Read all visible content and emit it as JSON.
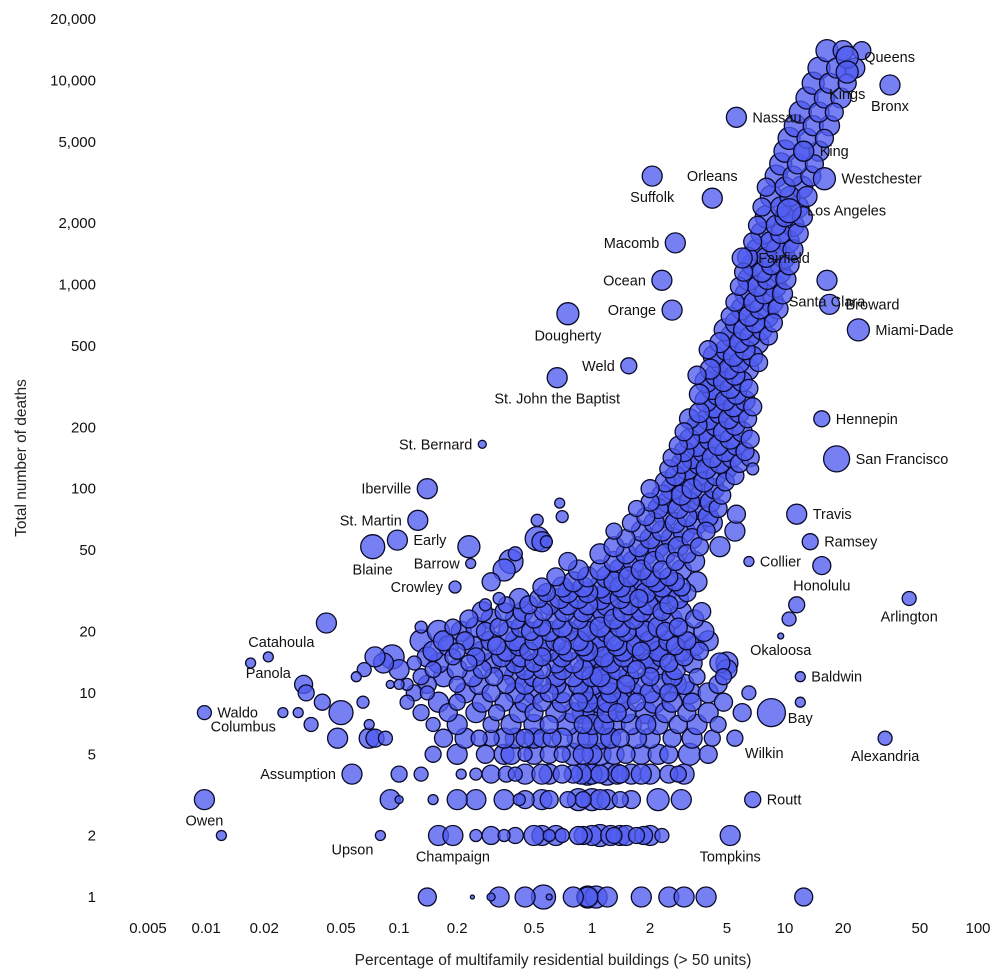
{
  "chart_data": {
    "type": "scatter",
    "title": "",
    "xlabel": "Percentage of multifamily residential buildings (> 50 units)",
    "ylabel": "Total number of deaths",
    "x_scale": "log",
    "y_scale": "log",
    "xlim": [
      0.0025,
      100
    ],
    "ylim": [
      0.85,
      20000
    ],
    "grid": false,
    "legend": "none",
    "x_ticks": [
      {
        "v": 0.005,
        "label": "0.005"
      },
      {
        "v": 0.01,
        "label": "0.01"
      },
      {
        "v": 0.02,
        "label": "0.02"
      },
      {
        "v": 0.05,
        "label": "0.05"
      },
      {
        "v": 0.1,
        "label": "0.1"
      },
      {
        "v": 0.2,
        "label": "0.2"
      },
      {
        "v": 0.5,
        "label": "0.5"
      },
      {
        "v": 1,
        "label": "1"
      },
      {
        "v": 2,
        "label": "2"
      },
      {
        "v": 5,
        "label": "5"
      },
      {
        "v": 10,
        "label": "10"
      },
      {
        "v": 20,
        "label": "20"
      },
      {
        "v": 50,
        "label": "50"
      },
      {
        "v": 100,
        "label": "100"
      }
    ],
    "y_ticks": [
      {
        "v": 1,
        "label": "1"
      },
      {
        "v": 2,
        "label": "2"
      },
      {
        "v": 5,
        "label": "5"
      },
      {
        "v": 10,
        "label": "10"
      },
      {
        "v": 20,
        "label": "20"
      },
      {
        "v": 50,
        "label": "50"
      },
      {
        "v": 100,
        "label": "100"
      },
      {
        "v": 200,
        "label": "200"
      },
      {
        "v": 500,
        "label": "500"
      },
      {
        "v": 1000,
        "label": "1,000"
      },
      {
        "v": 2000,
        "label": "2,000"
      },
      {
        "v": 5000,
        "label": "5,000"
      },
      {
        "v": 10000,
        "label": "10,000"
      },
      {
        "v": 20000,
        "label": "20,000"
      }
    ],
    "colors": {
      "bubble_fill": "#4f5cf0",
      "bubble_fill_opacity": 0.78,
      "bubble_stroke": "#0a0a2a"
    },
    "labeled_points": [
      {
        "name": "Queens",
        "x": 21,
        "y": 13000,
        "size": 11,
        "label_pos": "right"
      },
      {
        "name": "Kings",
        "x": 21,
        "y": 11000,
        "size": 11,
        "label_pos": "below"
      },
      {
        "name": "Bronx",
        "x": 35,
        "y": 9500,
        "size": 10,
        "label_pos": "below"
      },
      {
        "name": "Nassau",
        "x": 5.6,
        "y": 6600,
        "size": 10,
        "label_pos": "right"
      },
      {
        "name": "King",
        "x": 12.5,
        "y": 4500,
        "size": 10,
        "label_pos": "right"
      },
      {
        "name": "Westchester",
        "x": 16,
        "y": 3300,
        "size": 11,
        "label_pos": "right"
      },
      {
        "name": "Orleans",
        "x": 4.2,
        "y": 2650,
        "size": 10,
        "label_pos": "above"
      },
      {
        "name": "Suffolk",
        "x": 2.05,
        "y": 3400,
        "size": 10,
        "label_pos": "below"
      },
      {
        "name": "Los Angeles",
        "x": 10.5,
        "y": 2300,
        "size": 12,
        "label_pos": "right"
      },
      {
        "name": "Macomb",
        "x": 2.7,
        "y": 1600,
        "size": 10,
        "label_pos": "left"
      },
      {
        "name": "Fairfield",
        "x": 6,
        "y": 1350,
        "size": 10,
        "label_pos": "right"
      },
      {
        "name": "Ocean",
        "x": 2.3,
        "y": 1050,
        "size": 10,
        "label_pos": "left"
      },
      {
        "name": "Santa Clara",
        "x": 16.5,
        "y": 1050,
        "size": 10,
        "label_pos": "below"
      },
      {
        "name": "Orange",
        "x": 2.6,
        "y": 750,
        "size": 10,
        "label_pos": "left"
      },
      {
        "name": "Broward",
        "x": 17,
        "y": 800,
        "size": 10,
        "label_pos": "right"
      },
      {
        "name": "Miami-Dade",
        "x": 24,
        "y": 600,
        "size": 11,
        "label_pos": "right"
      },
      {
        "name": "Dougherty",
        "x": 0.75,
        "y": 720,
        "size": 11,
        "label_pos": "below"
      },
      {
        "name": "Weld",
        "x": 1.55,
        "y": 400,
        "size": 8,
        "label_pos": "left"
      },
      {
        "name": "St. John the Baptist",
        "x": 0.66,
        "y": 350,
        "size": 10,
        "label_pos": "below"
      },
      {
        "name": "Hennepin",
        "x": 15.5,
        "y": 220,
        "size": 8,
        "label_pos": "right"
      },
      {
        "name": "St. Bernard",
        "x": 0.27,
        "y": 165,
        "size": 4,
        "label_pos": "left"
      },
      {
        "name": "San Francisco",
        "x": 18.5,
        "y": 140,
        "size": 13,
        "label_pos": "right"
      },
      {
        "name": "Iberville",
        "x": 0.14,
        "y": 100,
        "size": 10,
        "label_pos": "left"
      },
      {
        "name": "Travis",
        "x": 11.5,
        "y": 75,
        "size": 10,
        "label_pos": "right"
      },
      {
        "name": "St. Martin",
        "x": 0.125,
        "y": 70,
        "size": 10,
        "label_pos": "left"
      },
      {
        "name": "Early",
        "x": 0.098,
        "y": 56,
        "size": 10,
        "label_pos": "right"
      },
      {
        "name": "Ramsey",
        "x": 13.5,
        "y": 55,
        "size": 8,
        "label_pos": "right"
      },
      {
        "name": "Blaine",
        "x": 0.073,
        "y": 52,
        "size": 12,
        "label_pos": "below"
      },
      {
        "name": "Barrow",
        "x": 0.235,
        "y": 43,
        "size": 5,
        "label_pos": "left"
      },
      {
        "name": "Collier",
        "x": 6.5,
        "y": 44,
        "size": 5,
        "label_pos": "right"
      },
      {
        "name": "Crowley",
        "x": 0.195,
        "y": 33,
        "size": 6,
        "label_pos": "left"
      },
      {
        "name": "Honolulu",
        "x": 15.5,
        "y": 42,
        "size": 9,
        "label_pos": "below"
      },
      {
        "name": "Arlington",
        "x": 44,
        "y": 29,
        "size": 7,
        "label_pos": "below"
      },
      {
        "name": "Catahoula",
        "x": 0.042,
        "y": 22,
        "size": 10,
        "label_pos": "below-left"
      },
      {
        "name": "Okaloosa",
        "x": 9.5,
        "y": 19,
        "size": 3,
        "label_pos": "below"
      },
      {
        "name": "Panola",
        "x": 0.021,
        "y": 15,
        "size": 5,
        "label_pos": "below"
      },
      {
        "name": "Baldwin",
        "x": 12,
        "y": 12,
        "size": 5,
        "label_pos": "right"
      },
      {
        "name": "Waldo",
        "x": 0.0098,
        "y": 8,
        "size": 7,
        "label_pos": "right"
      },
      {
        "name": "Bay",
        "x": 12,
        "y": 9,
        "size": 5,
        "label_pos": "below"
      },
      {
        "name": "Columbus",
        "x": 0.025,
        "y": 8,
        "size": 5,
        "label_pos": "below-left"
      },
      {
        "name": "Alexandria",
        "x": 33,
        "y": 6,
        "size": 7,
        "label_pos": "below"
      },
      {
        "name": "Wilkin",
        "x": 5.5,
        "y": 6,
        "size": 8,
        "label_pos": "below-right"
      },
      {
        "name": "Assumption",
        "x": 0.057,
        "y": 4,
        "size": 10,
        "label_pos": "left"
      },
      {
        "name": "Routt",
        "x": 6.8,
        "y": 3,
        "size": 8,
        "label_pos": "right"
      },
      {
        "name": "Owen",
        "x": 0.0098,
        "y": 3,
        "size": 10,
        "label_pos": "below"
      },
      {
        "name": "Upson",
        "x": 0.08,
        "y": 2,
        "size": 5,
        "label_pos": "below-left"
      },
      {
        "name": "Champaign",
        "x": 0.19,
        "y": 2,
        "size": 10,
        "label_pos": "below"
      },
      {
        "name": "Tompkins",
        "x": 5.2,
        "y": 2,
        "size": 10,
        "label_pos": "below"
      }
    ],
    "other_points_note": "approximately 1000 additional unlabeled counties",
    "points_compact": "0.95:1:11 1.05:1:11 1.2:1:10 0.56:1:12 0.33:1:10 0.14:1:9 0.24:1:2 0.45:1:10 2.5:1:10 3:1:10 12.5:1:9 0.3:1:4 0.6:1:3 1.8:1:10 0.95:1:10 0.8:1:10 3.9:1:10 0.4:2:8 0.55:2:10 0.7:2:7 1:2:10 1.1:2:11 1.4:2:10 1.7:2:8 2:2:10 2.3:2:7 0.25:2:6 0.3:2:9 0.6:2:6 0.9:2:9 0.012:2:5 0.16:2:10 1.5:2:10 1.3:2:8 0.65:2:10 0.85:2:9 1.85:2:9 0.35:2:6 0.5:2:10 1.25:2:10 0.9:3:8 1:3:11 1.2:3:10 0.55:3:10 0.35:3:10 0.09:3:10 0.6:3:9 1.4:3:8 2.2:3:11 2.9:3:10 0.42:3:6 0.75:3:8 0.25:3:10 0.15:3:5 0.1:3:4 1.6:3:9 0.85:3:11 1.1:3:10 0.45:3:9 0.2:3:10 0.95:4:11 1:4:10 1.2:4:11 1.4:4:9 1.6:4:10 0.8:4:9 0.6:4:10 0.45:4:10 0.36:4:8 0.3:4:9 2:4:10 2.5:4:9 3:4:10 0.1:4:8 0.25:4:6 0.21:4:5 0.13:4:7 0.88:4:10 1.8:4:10 1.1:4:9 2.8:4:8 0.55:4:10 0.4:4:7 0.7:4:9 1.35:4:10 1:5:10 0.8:5:11 1.3:5:10 1.8:5:10 2.5:5:9 0.6:5:9 0.5:5:10 0.35:5:10 0.28:5:9 0.2:5:10 0.15:5:8 3.2:5:11 4:5:9 2.2:5:10 1.5:5:9 0.9:5:10 1.1:5:11 0.7:5:8 0.45:5:7 0.38:5:10 0.95:6:10 1.1:6:11 1.4:6:9 0.7:6:10 0.55:6:9 0.4:6:10 0.3:6:8 0.22:6:10 0.17:6:9 0.07:6:10 0.075:6:9 0.085:6:7 0.048:6:10 2:6:10 2.6:6:9 3.3:6:10 4.2:6:8 1.7:6:10 0.85:6:11 1.25:6:10 0.62:6:9 0.5:6:10 0.35:6:10 0.26:6:8 0.45:6:9 0.9:7:9 1:7:10 1.3:7:11 1.6:7:10 2.2:7:10 2.8:7:9 3.5:7:10 4.5:7:8 0.6:7:9 0.5:7:10 0.38:7:10 0.3:7:8 0.2:7:10 0.15:7:7 0.07:7:5 0.035:7:7 0.75:7:11 1.15:7:10 1.9:7:10 0.8:8:10 1:8:11 1.2:8:10 1.5:8:10 1.9:8:11 2.4:8:10 3.1:8:9 4:8:10 0.65:8:10 0.5:8:9 0.42:8:10 0.32:8:8 0.25:8:10 0.18:8:9 0.13:8:8 0.05:8:12 0.03:8:5 8.5:8:14 6:8:9 0.9:8:11 1.35:8:9 0.95:9:10 1.1:9:11 1.4:9:10 1.7:9:9 2.1:9:11 2.6:9:10 3.3:9:9 0.7:9:10 0.55:9:9 0.45:9:10 0.35:9:9 0.27:9:10 0.2:9:8 0.16:9:10 0.11:9:7 0.04:9:8 0.065:9:6 4.8:9:9 1.2:9:10 0.85:9:9 0.9:10:10 1:10:11 1.25:10:10 1.6:10:11 2:10:10 2.5:10:9 3.2:10:11 0.7:10:10 0.6:10:9 0.5:10:11 0.4:10:10 0.3:10:9 0.22:10:10 0.14:10:7 0.12:10:8 0.033:10:8 6.5:10:7 4:10:10 1.4:10:11 0.85:11:10 1:11:11 1.2:11:10 1.5:11:9 1.8:11:11 2.3:11:10 3:11:10 0.65:11:10 0.55:11:9 0.45:11:10 0.36:11:9 0.26:11:10 0.2:11:8 0.14:11:9 0.1:11:5 0.11:11:6 0.09:11:4 0.032:11:9 4.5:11:9 2.7:11:11 0.8:12:10 1:12:10 1.25:12:11 1.55:12:10 2:12:9 2.6:12:10 3.5:12:8 0.65:12:10 0.5:12:10 0.4:12:11 0.31:12:9 0.24:12:10 0.17:12:10 0.13:12:8 0.06:12:5 4.8:12:8 1.1:12:10 0.9:13:10 1.1:13:11 1.35:13:10 1.7:13:9 2.1:13:11 2.7:13:10 0.7:13:10 0.55:13:9 0.45:13:10 0.35:13:10 0.27:13:9 0.2:13:10 0.15:13:8 0.1:13:10 0.066:13:7 5:13:10 0.8:14:10 1:14:11 1.25:14:10 1.6:14:10 2:14:10 2.5:14:9 3.3:14:10 4.6:14:10 5:14:11 0.65:14:10 0.5:14:9 0.4:14:10 0.3:14:10 0.23:14:8 0.16:14:10 0.12:14:7 0.083:14:10 0.017:14:5 0.95:15:11 1.15:15:10 1.45:15:10 1.85:15:11 2.3:15:10 3:15:9 0.7:15:10 0.55:15:9 0.43:15:10 0.34:15:10 0.25:15:9 0.19:15:8 0.14:15:10 0.092:15:12 0.075:15:10 0.95:16:10 1.15:16:11 1.45:16:10 1.8:16:9 2.2:16:10 2.9:16:10 3.6:16:9 0.75:16:10 0.6:16:10 0.47:16:9 0.36:16:10 0.27:16:10 0.2:16:8 0.15:16:10 0.9:17:10 1.1:17:11 1.35:17:10 1.7:17:10 2.2:17:11 2.7:17:9 3.4:17:10 0.7:17:9 0.55:17:10 0.42:17:10 0.32:17:9 0.24:17:10 0.18:17:10 0.85:18:10 1.05:18:11 1.3:18:10 1.6:18:11 2:18:10 2.5:18:10 3.1:18:9 4:18:10 0.65:18:10 0.5:18:9 0.4:18:10 0.3:18:10 0.22:18:9 0.17:18:10 0.13:18:11 0.95:20:10 1.2:20:11 1.5:20:10 1.9:20:10 2.4:20:9 3:20:10 3.8:20:10 0.75:20:10 0.6:20:10 0.48:20:9 0.37:20:10 0.28:20:9 0.21:20:10 0.16:20:11 0.9:21:11 1.1:21:10 1.4:21:10 1.75:21:11 2.2:21:10 2.8:21:9 0.7:21:10 0.55:21:9 0.43:21:10 0.33:21:9 0.25:21:10 0.19:21:8 0.13:21:6 0.85:23:10 1.05:23:11 1.3:23:10 1.65:23:10 2.1:23:11 2.6:23:10 3.4:23:9 0.65:23:10 0.5:23:9 0.4:23:10 0.3:23:10 0.23:23:9 10.5:23:7 0.9:25:10 1.15:25:11 1.45:25:10 1.8:25:10 2.3:25:9 2.9:25:10 3.7:25:9 0.72:25:10 0.56:25:9 0.44:25:10 0.35:25:9 0.27:25:10 0.95:27:10 1.2:27:11 1.55:27:10 1.95:27:10 2.5:27:9 0.75:27:10 0.6:27:10 0.47:27:9 0.36:27:8 0.28:27:6 11.5:27:8 0.85:29:10 1.1:29:11 1.4:29:10 1.75:29:9 2.2:29:11 2.8:29:10 0.68:29:10 0.53:29:9 0.42:29:10 0.33:29:6 0.95:31:10 1.2:31:11 1.5:31:10 1.9:31:10 2.4:31:11 3.1:31:9 0.75:31:10 0.58:31:9 0.9:33:10 1.1:33:11 1.4:33:10 1.8:33:11 2.3:33:10 2.9:33:9 0.7:33:10 0.55:33:9 1.3:35:10 1.7:35:11 2.15:35:10 2.7:35:9 3.5:35:10 0.8:35:10 0.95:37:10 1.2:37:11 1.55:37:10 2:37:10 2.5:37:9 0.65:37:9 1.1:40:10 1.4:40:11 1.8:40:10 2.3:40:9 2.9:40:10 0.85:40:10 0.35:40:11 0.38:44:12 0.3:35:9 1.3:44:10 1.65:44:11 2.1:44:10 2.7:44:9 3.4:44:10 0.75:44:9 1.5:48:10 1.9:48:11 2.4:48:10 3.1:48:9 1.1:48:10 0.4:48:7 1.75:52:10 2.2:52:11 2.8:52:10 3.6:52:9 1.3:52:10 4.6:52:10 0.55:55:10 0.52:57:12 0.23:52:11 0.58:55:6 2:57:10 2.6:57:11 3.3:57:10 1.5:57:9 5.5:62:10 2.3:62:10 3:62:11 1.8:62:10 3.9:62:9 1.3:62:8 2.7:68:10 3.5:68:11 2.1:68:10 1.6:68:9 4.2:68:10 3.1:73:10 2.4:73:11 4:73:10 1.9:73:9 0.7:73:6 5.6:75:9 0.52:70:6 2.8:80:10 3.6:80:11 2.2:80:10 4.5:80:9 1.7:80:8 3.2:86:10 2.5:86:11 4.1:86:10 2:86:9 0.68:85:5 2.9:93:10 3.7:93:11 2.3:93:10 4.7:93:9 3.3:100:10 2.6:100:11 4.3:100:10 2:100:9 3.8:108:10 3:108:11 2.4:108:10 4.9:108:9 3.5:116:11 4.4:116:10 2.7:116:10 5.5:116:9 3.9:125:10 3.1:125:11 2.5:125:9 5:125:10 6.8:125:6 4.6:133:10 3.6:133:11 2.9:133:10 5.8:133:9 4.2:142:10 3.3:142:11 2.6:142:9 5.3:142:10 6.6:142:9 4.9:152:10 3.8:152:11 3:152:10 6.2:152:9 4.5:163:10 3.5:163:11 5.6:163:10 2.8:163:9 5.2:175:10 4.1:175:11 3.2:175:10 6.6:175:9 4.8:190:10 3.8:190:11 6:190:10 3:190:9 5.5:205:10 4.4:205:11 3.5:205:10 5.1:220:10 4:220:11 6.4:220:9 3.2:220:10 5.8:236:10 4.6:236:11 3.6:236:10 5.4:252:10 4.3:252:11 6.8:252:9 4.9:270:10 3.9:270:11 6.2:270:10 5.6:290:10 4.5:290:11 3.6:290:10 5.2:310:10 4.2:310:11 6.5:310:9 4.8:335:10 3.9:335:11 6:335:10 5.5:360:10 4.4:360:11 3.5:360:9 5.1:385:10 6.4:385:11 4.1:385:10 5.8:415:10 4.7:415:11 7.3:415:9 5.4:445:10 4.3:445:11 6.8:445:10 6.2:480:10 5:480:11 4:480:9 5.8:520:10 7.2:520:11 4.6:520:10 6.6:560:10 5.3:560:11 8.2:560:9 6.1:600:10 4.9:600:11 7.6:600:10 7:650:10 5.6:650:11 8.7:650:9 6.5:700:10 8.1:700:11 5.2:700:9 7.4:760:10 6:760:11 9.2:760:10 6.9:820:10 8.6:820:11 5.5:820:9 7.8:900:10 6.3:900:11 9.7:900:10 7.2:980:10 8.9:980:11 5.8:980:9 8.1:1060:10 6.5:1060:11 10.1:1060:10 7.6:1150:10 9.4:1150:11 6.1:1150:9 8.5:1250:10 6.8:1250:11 10.5:1250:10 8:1360:10 9.9:1360:11 6.4:1360:10 9:1480:10 7.2:1480:11 11:1480:10 8.4:1620:10 10.4:1620:11 6.8:1620:9 9.5:1780:10 7.6:1780:11 11.7:1780:10 9:1950:10 11:1950:11 7.2:1950:9 10:2150:10 8:2150:11 12.3:2150:10 9.5:2400:10 11.6:2400:11 7.6:2400:9 10.6:2700:10 8.5:2700:11 13:2700:10 10:3000:10 12.2:3000:11 8:3000:9 11:3400:10 9:3400:11 13.6:3400:10 11.6:3900:10 9.5:3900:11 14.2:3900:9 12.5:4500:10 10:4500:11 15:4500:10 13:5200:10 10.5:5200:11 16:5200:9 14:6000:10 11.3:6000:11 17:6000:10 15:7000:10 12:7000:11 18:7000:9 16:8200:10 13:8200:11 19.5:8200:10 17:9700:10 14:9700:11 21:9700:9 18.5:11500:10 15:11500:11 23:11500:10 20:14000:10 16.5:14000:11 25:14000:9"
  }
}
